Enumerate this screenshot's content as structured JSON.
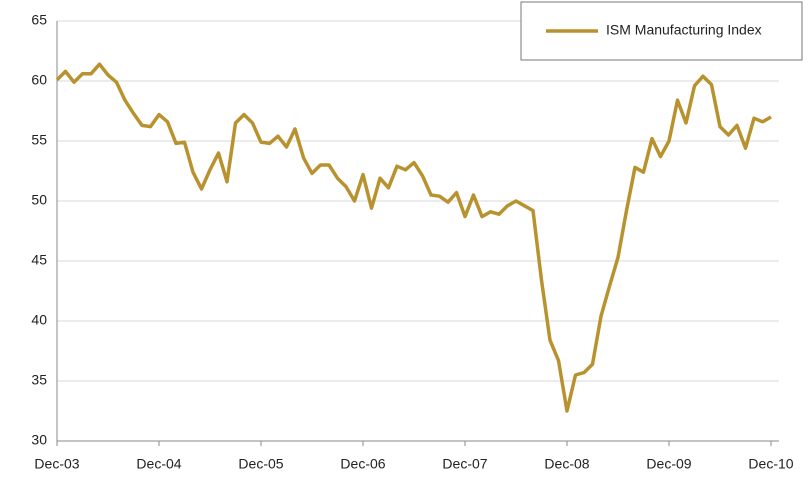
{
  "chart_data": {
    "type": "line",
    "categories": [
      "Dec-03",
      null,
      null,
      null,
      null,
      null,
      null,
      null,
      null,
      null,
      null,
      null,
      "Dec-04",
      null,
      null,
      null,
      null,
      null,
      null,
      null,
      null,
      null,
      null,
      null,
      "Dec-05",
      null,
      null,
      null,
      null,
      null,
      null,
      null,
      null,
      null,
      null,
      null,
      "Dec-06",
      null,
      null,
      null,
      null,
      null,
      null,
      null,
      null,
      null,
      null,
      null,
      "Dec-07",
      null,
      null,
      null,
      null,
      null,
      null,
      null,
      null,
      null,
      null,
      null,
      "Dec-08",
      null,
      null,
      null,
      null,
      null,
      null,
      null,
      null,
      null,
      null,
      null,
      "Dec-09",
      null,
      null,
      null,
      null,
      null,
      null,
      null,
      null,
      null,
      null,
      null,
      "Dec-10"
    ],
    "series": [
      {
        "name": "ISM Manufacturing Index",
        "color": "#b8922e",
        "values": [
          60.1,
          60.8,
          59.9,
          60.6,
          60.6,
          61.4,
          60.5,
          59.9,
          58.4,
          57.3,
          56.3,
          56.2,
          57.2,
          56.6,
          54.8,
          54.9,
          52.4,
          51.0,
          52.6,
          54.0,
          51.6,
          56.5,
          57.2,
          56.5,
          54.9,
          54.8,
          55.4,
          54.5,
          56.0,
          53.6,
          52.3,
          53.0,
          53.0,
          51.9,
          51.2,
          50.0,
          52.2,
          49.4,
          51.9,
          51.1,
          52.9,
          52.6,
          53.2,
          52.1,
          50.5,
          50.4,
          49.9,
          50.7,
          48.7,
          50.5,
          48.7,
          49.1,
          48.9,
          49.6,
          50.0,
          49.6,
          49.2,
          43.4,
          38.4,
          36.7,
          32.5,
          35.5,
          35.7,
          36.4,
          40.4,
          42.9,
          45.3,
          49.2,
          52.8,
          52.4,
          55.2,
          53.7,
          55.0,
          58.4,
          56.5,
          59.6,
          60.4,
          59.7,
          56.2,
          55.5,
          56.3,
          54.4,
          56.9,
          56.6,
          57.0
        ]
      }
    ],
    "ylim": [
      30,
      65
    ],
    "yticks": [
      30,
      35,
      40,
      45,
      50,
      55,
      60,
      65
    ],
    "grid": true,
    "legend": "top-right"
  }
}
